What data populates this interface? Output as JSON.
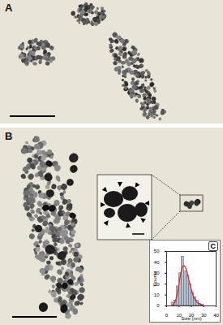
{
  "figure": {
    "panel_labels": [
      "A",
      "B",
      "C"
    ]
  },
  "chart_data": {
    "type": "histogram",
    "xlabel": "Size (nm)",
    "ylabel": "Counts",
    "bins": [
      4,
      6,
      8,
      10,
      12,
      14,
      16,
      18,
      20,
      22,
      24,
      26,
      28,
      30
    ],
    "counts": [
      3,
      5,
      18,
      30,
      45,
      32,
      28,
      20,
      12,
      8,
      5,
      2,
      1
    ],
    "color": "#b3bfd3",
    "fit": {
      "x": [
        4,
        6,
        8,
        10,
        12,
        14,
        16,
        18,
        20,
        22,
        24,
        26,
        28,
        30
      ],
      "values": [
        0,
        2,
        8,
        20,
        33,
        37,
        33,
        24,
        15,
        8,
        4,
        2,
        1,
        0
      ],
      "color": "#e02020"
    },
    "xlim": [
      0,
      40
    ],
    "xticks": [
      0,
      10,
      20,
      30,
      40
    ],
    "ylim": [
      0,
      50
    ],
    "yticks": [
      0,
      10,
      20,
      30,
      40,
      50
    ]
  }
}
